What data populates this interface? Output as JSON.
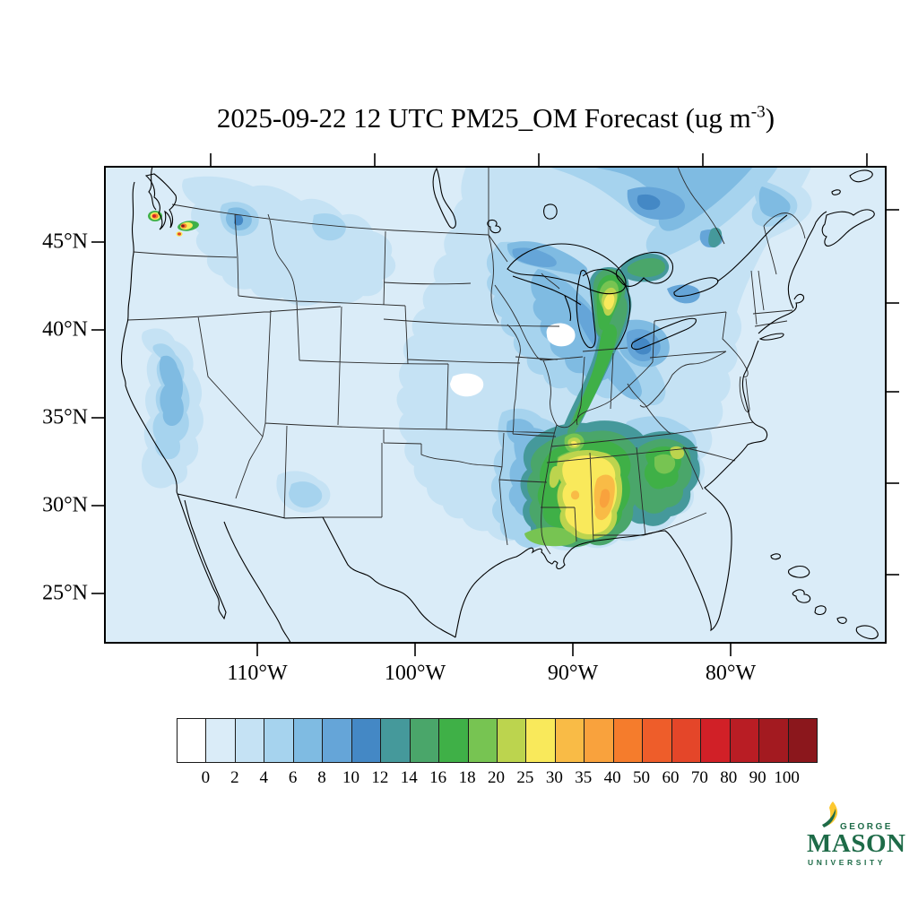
{
  "title": {
    "prefix": "2025-09-22 12 UTC PM25_OM Forecast (ug m",
    "superscript": "-3",
    "suffix": ")"
  },
  "axes": {
    "lat_labels": [
      "45°N",
      "40°N",
      "35°N",
      "30°N",
      "25°N"
    ],
    "lon_labels": [
      "110°W",
      "100°W",
      "90°W",
      "80°W"
    ]
  },
  "colorbar": {
    "labels": [
      "0",
      "2",
      "4",
      "6",
      "8",
      "10",
      "12",
      "14",
      "16",
      "18",
      "20",
      "25",
      "30",
      "35",
      "40",
      "50",
      "60",
      "70",
      "80",
      "90",
      "100"
    ],
    "colors": [
      "#ffffff",
      "#daecf8",
      "#c5e2f4",
      "#a6d3ee",
      "#7fbbe2",
      "#65a5d8",
      "#4488c5",
      "#45999b",
      "#4aa66a",
      "#3fb047",
      "#77c452",
      "#bcd44e",
      "#f9e95b",
      "#f9bb46",
      "#f9a23d",
      "#f57c2c",
      "#ee5d2a",
      "#e44629",
      "#d12027",
      "#b91d24",
      "#a31a20",
      "#8b171c"
    ]
  },
  "logo": {
    "line1": "GEORGE",
    "line2": "MASON",
    "line3": "UNIVERSITY",
    "green": "#1e6b48",
    "gold": "#fdc82f"
  },
  "chart_data": {
    "type": "heatmap",
    "subtype": "filled_contour_forecast_map",
    "title": "2025-09-22 12 UTC PM25_OM Forecast (ug m-3)",
    "variable": "PM25_OM",
    "units": "ug m-3",
    "valid_time": "2025-09-22 12 UTC",
    "region": "Continental United States with southern Canada and northern Mexico",
    "lat_tick_values_deg_n": [
      45,
      40,
      35,
      30,
      25
    ],
    "lon_tick_values_deg_w": [
      110,
      100,
      90,
      80
    ],
    "contour_levels": [
      0,
      2,
      4,
      6,
      8,
      10,
      12,
      14,
      16,
      18,
      20,
      25,
      30,
      35,
      40,
      50,
      60,
      70,
      80,
      90,
      100
    ],
    "palette": [
      "#ffffff",
      "#daecf8",
      "#c5e2f4",
      "#a6d3ee",
      "#7fbbe2",
      "#65a5d8",
      "#4488c5",
      "#45999b",
      "#4aa66a",
      "#3fb047",
      "#77c452",
      "#bcd44e",
      "#f9e95b",
      "#f9bb46",
      "#f9a23d",
      "#f57c2c",
      "#ee5d2a",
      "#e44629",
      "#d12027",
      "#b91d24",
      "#a31a20",
      "#8b171c"
    ],
    "legend_position": "bottom",
    "grid": "state and national boundaries with lat/lon frame ticks",
    "features": [
      {
        "region": "Puget Sound / western Washington fire plumes",
        "peak_value": "> 100"
      },
      {
        "region": "Central Alabama - Mississippi",
        "peak_value": "35-40"
      },
      {
        "region": "Lower Michigan",
        "peak_value": "25-30"
      },
      {
        "region": "Kentucky - Tennessee border",
        "peak_value": "25-30"
      },
      {
        "region": "Georgia",
        "peak_value": "20-25"
      },
      {
        "region": "Gulf coast Mississippi/Alabama",
        "peak_value": "20-25"
      },
      {
        "region": "Ohio Valley / Appalachians corridor",
        "peak_value": "10-12"
      },
      {
        "region": "Quebec - Ontario smoke band",
        "peak_value": "10-12"
      },
      {
        "region": "Sierra Nevada, California",
        "peak_value": "6-8"
      },
      {
        "region": "Idaho Panhandle",
        "peak_value": "10-12"
      },
      {
        "region": "Most of the Plains and West",
        "peak_value": "0-2"
      }
    ]
  }
}
